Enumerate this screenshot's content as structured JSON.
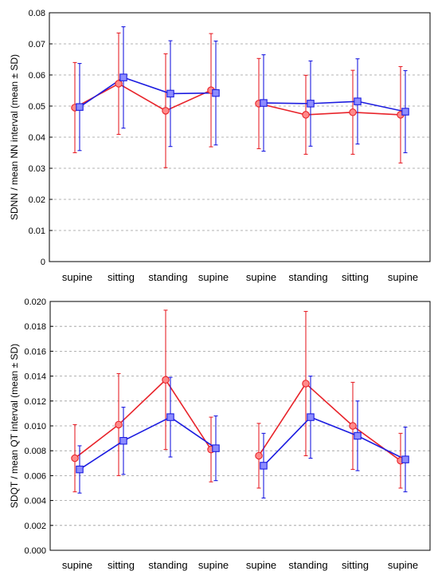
{
  "colors": {
    "red": "#e8232a",
    "blue": "#1c1ce0",
    "red_fill": "#ff8a8a",
    "blue_fill": "#8c8cff"
  },
  "chart_data": [
    {
      "type": "line",
      "ylabel": "SDNN / mean NN interval (mean ± SD)",
      "ylim": [
        0,
        0.08
      ],
      "yticks": [
        "0",
        "0.01",
        "0.02",
        "0.03",
        "0.04",
        "0.05",
        "0.06",
        "0.07",
        "0.08"
      ],
      "grid": "horizontal dashed",
      "categories": [
        "supine",
        "sitting",
        "standing",
        "supine",
        "supine",
        "standing",
        "sitting",
        "supine"
      ],
      "groups": [
        [
          0,
          1,
          2,
          3
        ],
        [
          4,
          5,
          6,
          7
        ]
      ],
      "series": [
        {
          "color": "red",
          "marker": "circle",
          "values": [
            0.0495,
            0.0572,
            0.0485,
            0.0551,
            0.0508,
            0.0472,
            0.048,
            0.0472
          ],
          "sd": [
            0.0145,
            0.0163,
            0.0183,
            0.0182,
            0.0145,
            0.0127,
            0.0135,
            0.0155
          ]
        },
        {
          "color": "blue",
          "marker": "square",
          "values": [
            0.0497,
            0.0592,
            0.054,
            0.0542,
            0.051,
            0.0508,
            0.0515,
            0.0482
          ],
          "sd": [
            0.014,
            0.0163,
            0.017,
            0.0167,
            0.0155,
            0.0137,
            0.0137,
            0.0132
          ]
        }
      ]
    },
    {
      "type": "line",
      "ylabel": "SDQT / mean QT interval (mean ± SD)",
      "ylim": [
        0,
        0.02
      ],
      "yticks": [
        "0.000",
        "0.002",
        "0.004",
        "0.006",
        "0.008",
        "0.010",
        "0.012",
        "0.014",
        "0.016",
        "0.018",
        "0.020"
      ],
      "grid": "horizontal dashed",
      "categories": [
        "supine",
        "sitting",
        "standing",
        "supine",
        "supine",
        "standing",
        "sitting",
        "supine"
      ],
      "groups": [
        [
          0,
          1,
          2,
          3
        ],
        [
          4,
          5,
          6,
          7
        ]
      ],
      "series": [
        {
          "color": "red",
          "marker": "circle",
          "values": [
            0.0074,
            0.0101,
            0.0137,
            0.0081,
            0.0076,
            0.0134,
            0.01,
            0.0072
          ],
          "sd": [
            0.0027,
            0.0041,
            0.0056,
            0.0026,
            0.0026,
            0.0058,
            0.0035,
            0.0022
          ]
        },
        {
          "color": "blue",
          "marker": "square",
          "values": [
            0.0065,
            0.0088,
            0.0107,
            0.0082,
            0.0068,
            0.0107,
            0.0092,
            0.0073
          ],
          "sd": [
            0.0019,
            0.0027,
            0.0032,
            0.0026,
            0.0026,
            0.0033,
            0.0028,
            0.0026
          ]
        }
      ]
    }
  ]
}
